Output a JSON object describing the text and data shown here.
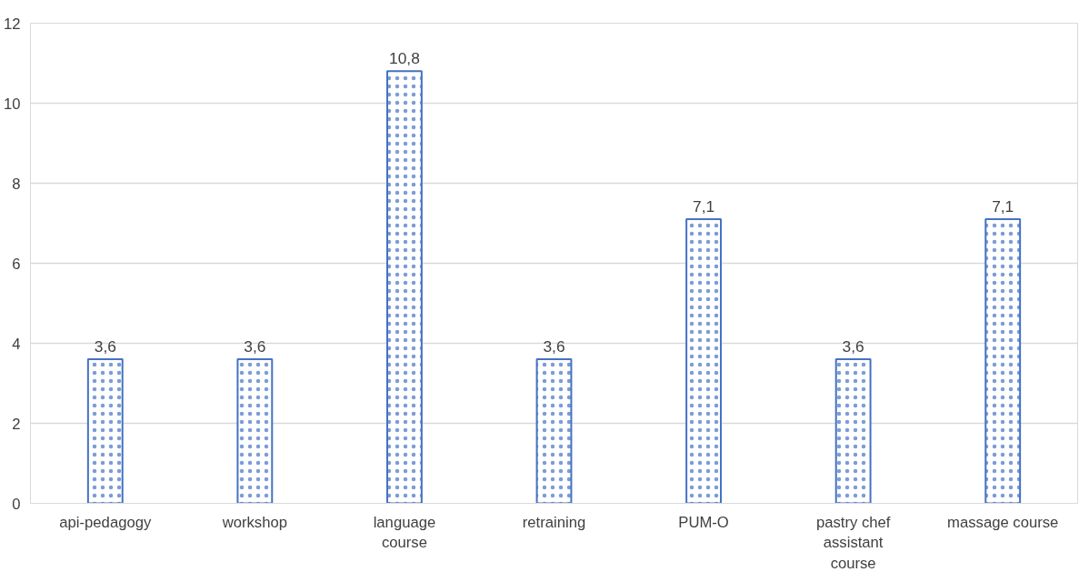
{
  "chart_data": {
    "type": "bar",
    "categories": [
      "api-pedagogy",
      "workshop",
      "language course",
      "retraining",
      "PUM-O",
      "pastry chef assistant course",
      "massage course"
    ],
    "values": [
      3.6,
      3.6,
      10.8,
      3.6,
      7.1,
      3.6,
      7.1
    ],
    "value_labels": [
      "3,6",
      "3,6",
      "10,8",
      "3,6",
      "7,1",
      "3,6",
      "7,1"
    ],
    "color": "#4472c4",
    "ylim": [
      0,
      12
    ],
    "yticks": [
      0,
      2,
      4,
      6,
      8,
      10,
      12
    ],
    "grid": "y"
  }
}
